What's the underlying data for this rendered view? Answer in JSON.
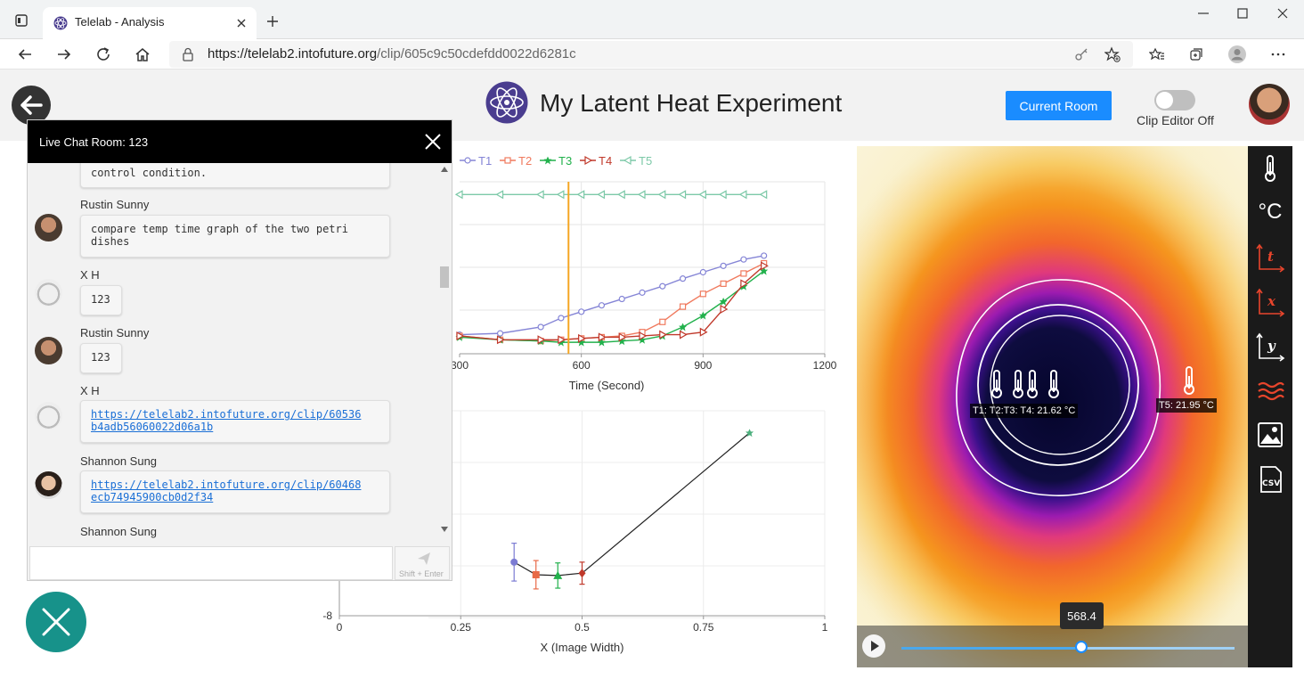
{
  "browser": {
    "tab_title": "Telelab - Analysis",
    "url_host": "https://telelab2.intofuture.org",
    "url_path": "/clip/605c9c50cdefdd0022d6281c"
  },
  "header": {
    "title": "My Latent Heat Experiment",
    "current_room_label": "Current Room",
    "clip_editor_label": "Clip Editor Off"
  },
  "chat": {
    "title": "Live Chat Room: 123",
    "send_hint": "Shift + Enter",
    "input_value": "",
    "messages": [
      {
        "name": "",
        "text": "control condition."
      },
      {
        "name": "Rustin Sunny",
        "text": "compare temp time graph of the two petri dishes"
      },
      {
        "name": "X H",
        "text": "123"
      },
      {
        "name": "Rustin Sunny",
        "text": "123"
      },
      {
        "name": "X H",
        "link": "https://telelab2.intofuture.org/clip/60536b4adb56060022d06a1b"
      },
      {
        "name": "Shannon Sung",
        "link": "https://telelab2.intofuture.org/clip/60468ecb74945900cb0d2f34"
      },
      {
        "name": "Shannon Sung",
        "text": ""
      }
    ],
    "link1_line1": "https://telelab2.intofuture.org/clip/60536",
    "link1_line2": "b4adb56060022d06a1b",
    "link2_line1": "https://telelab2.intofuture.org/clip/60468",
    "link2_line2": "ecb74945900cb0d2f34",
    "msg2_line1": "compare temp time graph of the two petri",
    "msg2_line2": "dishes"
  },
  "thermal": {
    "probe_labels": [
      "T1:",
      "T2:",
      "T3:",
      "T4:",
      "21.62 °C"
    ],
    "probe_label_combined": "T1: T2:T3: T4: 21.62 °C",
    "t5_label": "T5: 21.95 °C",
    "slider_value": "568.4",
    "slider_fraction": 0.54
  },
  "toolbar": {
    "items": [
      "thermometer-icon",
      "celsius-icon",
      "t-axis-icon",
      "x-axis-icon",
      "y-axis-icon",
      "heat-icon",
      "image-icon",
      "csv-icon"
    ],
    "celsius_text": "°C",
    "t_text": "t",
    "x_text": "x",
    "y_text": "y",
    "csv_text": "CSV"
  },
  "chart_data": [
    {
      "type": "line",
      "xlabel": "Time (Second)",
      "ylabel": "",
      "xlim": [
        300,
        1200
      ],
      "x_ticks": [
        "300",
        "600",
        "900",
        "1200"
      ],
      "cursor_x": 568.4,
      "series": [
        {
          "name": "T1",
          "color": "#8585d6",
          "marker": "circle",
          "x": [
            300,
            400,
            500,
            550,
            600,
            650,
            700,
            750,
            800,
            850,
            900,
            950,
            1000,
            1050
          ],
          "y": [
            4.0,
            4.1,
            4.6,
            5.3,
            5.8,
            6.3,
            6.8,
            7.3,
            7.8,
            8.4,
            8.9,
            9.4,
            9.9,
            10.2
          ]
        },
        {
          "name": "T2",
          "color": "#f07a5e",
          "marker": "square",
          "x": [
            300,
            400,
            500,
            550,
            600,
            650,
            700,
            750,
            800,
            850,
            900,
            950,
            1000,
            1050
          ],
          "y": [
            3.9,
            3.6,
            3.5,
            3.6,
            3.7,
            3.8,
            3.9,
            4.2,
            5.0,
            6.2,
            7.2,
            8.0,
            8.8,
            9.6
          ]
        },
        {
          "name": "T3",
          "color": "#22b14c",
          "marker": "star",
          "x": [
            300,
            400,
            500,
            550,
            600,
            650,
            700,
            750,
            800,
            850,
            900,
            950,
            1000,
            1050
          ],
          "y": [
            3.8,
            3.6,
            3.5,
            3.4,
            3.4,
            3.4,
            3.5,
            3.6,
            3.9,
            4.6,
            5.5,
            6.6,
            7.8,
            9.0
          ]
        },
        {
          "name": "T4",
          "color": "#c0392b",
          "marker": "triangle-right",
          "x": [
            300,
            400,
            500,
            550,
            600,
            650,
            700,
            750,
            800,
            850,
            900,
            950,
            1000,
            1050
          ],
          "y": [
            3.9,
            3.6,
            3.6,
            3.6,
            3.7,
            3.8,
            3.8,
            3.9,
            4.0,
            4.0,
            4.2,
            6.0,
            8.0,
            9.4
          ]
        },
        {
          "name": "T5",
          "color": "#7dc9a8",
          "marker": "triangle-left",
          "x": [
            300,
            400,
            500,
            550,
            600,
            650,
            700,
            750,
            800,
            850,
            900,
            950,
            1000,
            1050
          ],
          "y": [
            15.0,
            15.0,
            15.0,
            15.0,
            15.0,
            15.0,
            15.0,
            15.0,
            15.0,
            15.0,
            15.0,
            15.0,
            15.0,
            15.0
          ]
        }
      ]
    },
    {
      "type": "scatter",
      "xlabel": "X (Image Width)",
      "ylabel": "",
      "xlim": [
        0,
        1
      ],
      "x_ticks": [
        "0",
        "0.25",
        "0.5",
        "0.75",
        "1"
      ],
      "y_ticks_visible": [
        "-8"
      ],
      "points": [
        {
          "name": "T1",
          "color": "#7c7cd3",
          "x": 0.36,
          "y": -4.6,
          "err": 1.2
        },
        {
          "name": "T2",
          "color": "#e86a47",
          "x": 0.405,
          "y": -5.4,
          "err": 0.9
        },
        {
          "name": "T3",
          "color": "#22b14c",
          "x": 0.45,
          "y": -5.45,
          "err": 0.8
        },
        {
          "name": "T4",
          "color": "#c0392b",
          "x": 0.5,
          "y": -5.3,
          "err": 0.7
        },
        {
          "name": "T5",
          "color": "#4caf7d",
          "x": 0.845,
          "y": 3.6,
          "err": 0
        }
      ]
    }
  ]
}
